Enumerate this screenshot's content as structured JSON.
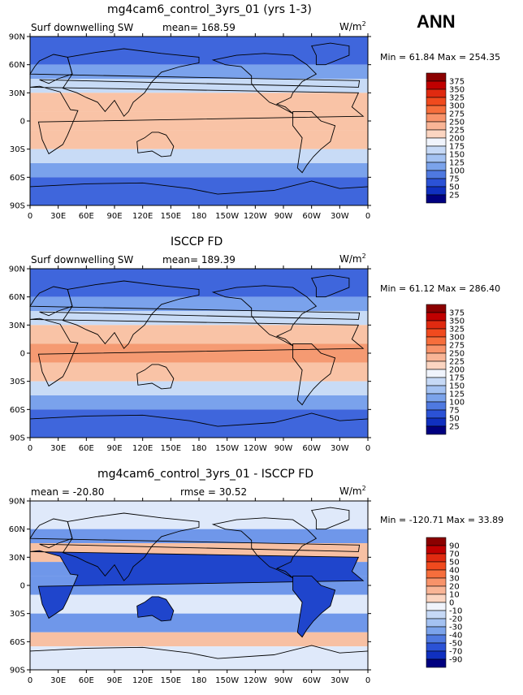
{
  "season": "ANN",
  "panels": [
    {
      "title": "mg4cam6_control_3yrs_01 (yrs 1-3)",
      "left_label": "Surf downwelling SW",
      "center_label": "mean= 168.59",
      "units_base": "W/m",
      "units_exp": "2",
      "minmax": "Min =   61.84  Max =  254.35",
      "colorbar_labels": [
        "375",
        "350",
        "325",
        "300",
        "275",
        "250",
        "225",
        "200",
        "175",
        "150",
        "125",
        "100",
        "75",
        "50",
        "25"
      ]
    },
    {
      "title": "ISCCP FD",
      "left_label": "Surf downwelling SW",
      "center_label": "mean= 189.39",
      "units_base": "W/m",
      "units_exp": "2",
      "minmax": "Min =   61.12  Max =  286.40",
      "colorbar_labels": [
        "375",
        "350",
        "325",
        "300",
        "275",
        "250",
        "225",
        "200",
        "175",
        "150",
        "125",
        "100",
        "75",
        "50",
        "25"
      ]
    },
    {
      "title": "mg4cam6_control_3yrs_01 - ISCCP FD",
      "left_label": "mean = -20.80",
      "center_label": "rmse =  30.52",
      "units_base": "W/m",
      "units_exp": "2",
      "minmax": "Min = -120.71  Max =   33.89",
      "colorbar_labels": [
        "90",
        "70",
        "50",
        "40",
        "30",
        "20",
        "10",
        "0",
        "-10",
        "-20",
        "-30",
        "-40",
        "-50",
        "-70",
        "-90"
      ]
    }
  ],
  "lat_labels": [
    "90N",
    "60N",
    "30N",
    "0",
    "30S",
    "60S",
    "90S"
  ],
  "lon_labels": [
    "0",
    "30E",
    "60E",
    "90E",
    "120E",
    "150E",
    "180",
    "150W",
    "120W",
    "90W",
    "60W",
    "30W",
    "0"
  ],
  "colorbar_colors": [
    "#8b0000",
    "#c00000",
    "#e02a10",
    "#f04a1e",
    "#f66e3c",
    "#f8936a",
    "#f9b596",
    "#fbd5c1",
    "#f0f4fc",
    "#c6d9f6",
    "#a4c2f2",
    "#7ba3eb",
    "#4f79e0",
    "#2b52d6",
    "#1030c0",
    "#000080"
  ],
  "map_colors": {
    "polar": "#3f66dc",
    "midlat": "#7aa2ec",
    "subtrop": "#c8dbf6",
    "tropics_warm": "#f9c3a6",
    "tropics_hot": "#f59a72",
    "land_outline": "#000000",
    "diff_neg_strong": "#1f45cc",
    "diff_neg": "#6f97ea",
    "diff_weak": "#dfe9fa",
    "diff_pos": "#f7c0a3"
  }
}
